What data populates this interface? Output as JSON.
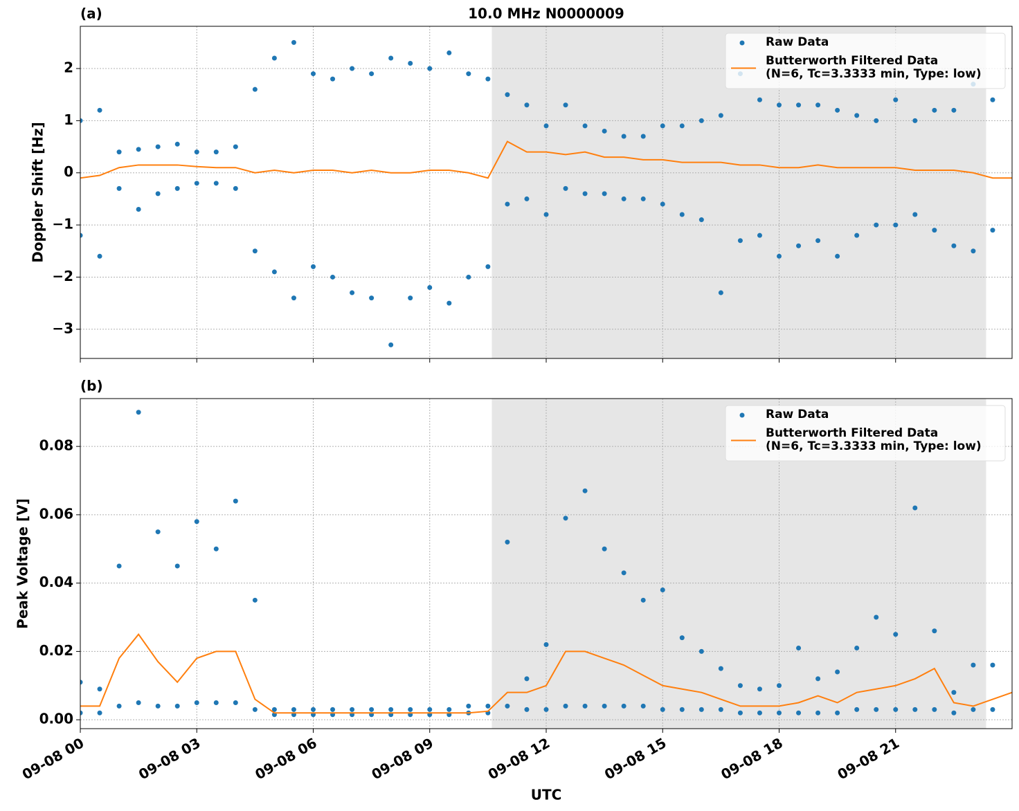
{
  "chart_data": [
    {
      "type": "line",
      "panel_label": "(a)",
      "title": "10.0 MHz N0000009",
      "ylabel": "Doppler Shift [Hz]",
      "xlim": [
        0,
        24
      ],
      "xticks": [
        0,
        3,
        6,
        9,
        12,
        15,
        18,
        21
      ],
      "ylim": [
        -3.56,
        2.81
      ],
      "yticks": [
        {
          "value": -3,
          "label": "−3"
        },
        {
          "value": -2,
          "label": "−2"
        },
        {
          "value": -1,
          "label": "−1"
        },
        0,
        1,
        2
      ],
      "grid": true,
      "legend": "upper right",
      "shaded_span": [
        10.6,
        23.33
      ],
      "shade_color": "#e6e6e6",
      "series": [
        {
          "name": "Raw Data",
          "style": "points",
          "color": "#1f77b4",
          "x": [
            0,
            0,
            0.5,
            0.5,
            1,
            1,
            1.5,
            1.5,
            2,
            2,
            2.5,
            2.5,
            3,
            3,
            3.5,
            3.5,
            4,
            4,
            4.5,
            4.5,
            5,
            5,
            5.5,
            5.5,
            6,
            6,
            6.5,
            6.5,
            7,
            7,
            7.5,
            7.5,
            8,
            8,
            8.5,
            8.5,
            9,
            9,
            9.5,
            9.5,
            10,
            10,
            10.5,
            10.5,
            11,
            11,
            11.5,
            11.5,
            12,
            12,
            12.5,
            12.5,
            13,
            13,
            13.5,
            13.5,
            14,
            14,
            14.5,
            14.5,
            15,
            15,
            15.5,
            15.5,
            16,
            16,
            16.5,
            16.5,
            17,
            17,
            17.5,
            17.5,
            18,
            18,
            18.5,
            18.5,
            19,
            19,
            19.5,
            19.5,
            20,
            20,
            20.5,
            20.5,
            21,
            21,
            21.5,
            21.5,
            22,
            22,
            22.5,
            22.5,
            23,
            23,
            23.5,
            23.5
          ],
          "values": [
            1.0,
            -1.2,
            1.2,
            -1.6,
            0.4,
            -0.3,
            0.45,
            -0.7,
            0.5,
            -0.4,
            0.55,
            -0.3,
            0.4,
            -0.2,
            0.4,
            -0.2,
            0.5,
            -0.3,
            1.6,
            -1.5,
            2.2,
            -1.9,
            2.5,
            -2.4,
            1.9,
            -1.8,
            1.8,
            -2.0,
            2.0,
            -2.3,
            1.9,
            -2.4,
            2.2,
            -3.3,
            2.1,
            -2.4,
            2.0,
            -2.2,
            2.3,
            -2.5,
            1.9,
            -2.0,
            1.8,
            -1.8,
            1.5,
            -0.6,
            1.3,
            -0.5,
            0.9,
            -0.8,
            1.3,
            -0.3,
            0.9,
            -0.4,
            0.8,
            -0.4,
            0.7,
            -0.5,
            0.7,
            -0.5,
            0.9,
            -0.6,
            0.9,
            -0.8,
            1.0,
            -0.9,
            1.1,
            -2.3,
            1.9,
            -1.3,
            1.4,
            -1.2,
            1.3,
            -1.6,
            1.3,
            -1.4,
            1.3,
            -1.3,
            1.2,
            -1.6,
            1.1,
            -1.2,
            1.0,
            -1.0,
            1.4,
            -1.0,
            1.0,
            -0.8,
            1.2,
            -1.1,
            1.2,
            -1.4,
            1.7,
            -1.5,
            1.4,
            -1.1
          ]
        },
        {
          "name": "Butterworth Filtered Data\n(N=6, Tc=3.3333 min, Type: low)",
          "style": "line",
          "color": "#ff7f0e",
          "x": [
            0,
            0.5,
            1,
            1.5,
            2,
            2.5,
            3,
            3.5,
            4,
            4.5,
            5,
            5.5,
            6,
            6.5,
            7,
            7.5,
            8,
            8.5,
            9,
            9.5,
            10,
            10.5,
            11,
            11.5,
            12,
            12.5,
            13,
            13.5,
            14,
            14.5,
            15,
            15.5,
            16,
            16.5,
            17,
            17.5,
            18,
            18.5,
            19,
            19.5,
            20,
            20.5,
            21,
            21.5,
            22,
            22.5,
            23,
            23.5,
            24
          ],
          "values": [
            -0.1,
            -0.05,
            0.1,
            0.15,
            0.15,
            0.15,
            0.12,
            0.1,
            0.1,
            0,
            0.05,
            0,
            0.05,
            0.05,
            0,
            0.05,
            0,
            0,
            0.05,
            0.05,
            0,
            -0.1,
            0.6,
            0.4,
            0.4,
            0.35,
            0.4,
            0.3,
            0.3,
            0.25,
            0.25,
            0.2,
            0.2,
            0.2,
            0.15,
            0.15,
            0.1,
            0.1,
            0.15,
            0.1,
            0.1,
            0.1,
            0.1,
            0.05,
            0.05,
            0.05,
            0,
            -0.1,
            -0.1
          ]
        }
      ]
    },
    {
      "type": "line",
      "panel_label": "(b)",
      "ylabel": "Peak Voltage [V]",
      "xlabel": "UTC",
      "xlim": [
        0,
        24
      ],
      "xticks": [
        {
          "value": 0,
          "label": "09-08 00"
        },
        {
          "value": 3,
          "label": "09-08 03"
        },
        {
          "value": 6,
          "label": "09-08 06"
        },
        {
          "value": 9,
          "label": "09-08 09"
        },
        {
          "value": 12,
          "label": "09-08 12"
        },
        {
          "value": 15,
          "label": "09-08 15"
        },
        {
          "value": 18,
          "label": "09-08 18"
        },
        {
          "value": 21,
          "label": "09-08 21"
        }
      ],
      "ylim": [
        -0.0026,
        0.094
      ],
      "yticks": [
        {
          "value": 0,
          "label": "0.00"
        },
        {
          "value": 0.02,
          "label": "0.02"
        },
        {
          "value": 0.04,
          "label": "0.04"
        },
        {
          "value": 0.06,
          "label": "0.06"
        },
        {
          "value": 0.08,
          "label": "0.08"
        }
      ],
      "grid": true,
      "legend": "upper right",
      "shaded_span": [
        10.6,
        23.33
      ],
      "shade_color": "#e6e6e6",
      "series": [
        {
          "name": "Raw Data",
          "style": "points",
          "color": "#1f77b4",
          "x": [
            0,
            0,
            0.5,
            0.5,
            1,
            1,
            1.5,
            1.5,
            2,
            2,
            2.5,
            2.5,
            3,
            3,
            3.5,
            3.5,
            4,
            4,
            4.5,
            4.5,
            5,
            5,
            5.5,
            5.5,
            6,
            6,
            6.5,
            6.5,
            7,
            7,
            7.5,
            7.5,
            8,
            8,
            8.5,
            8.5,
            9,
            9,
            9.5,
            9.5,
            10,
            10,
            10.5,
            10.5,
            11,
            11,
            11.5,
            11.5,
            12,
            12,
            12.5,
            12.5,
            13,
            13,
            13.5,
            13.5,
            14,
            14,
            14.5,
            14.5,
            15,
            15,
            15.5,
            15.5,
            16,
            16,
            16.5,
            16.5,
            17,
            17,
            17.5,
            17.5,
            18,
            18,
            18.5,
            18.5,
            19,
            19,
            19.5,
            19.5,
            20,
            20,
            20.5,
            20.5,
            21,
            21,
            21.5,
            21.5,
            22,
            22,
            22.5,
            22.5,
            23,
            23,
            23.5,
            23.5
          ],
          "values": [
            0.011,
            0.002,
            0.009,
            0.002,
            0.045,
            0.004,
            0.09,
            0.005,
            0.055,
            0.004,
            0.045,
            0.004,
            0.058,
            0.005,
            0.05,
            0.005,
            0.064,
            0.005,
            0.035,
            0.003,
            0.003,
            0.0015,
            0.003,
            0.0015,
            0.003,
            0.0015,
            0.003,
            0.0015,
            0.003,
            0.0015,
            0.003,
            0.0015,
            0.003,
            0.0015,
            0.003,
            0.0015,
            0.003,
            0.0015,
            0.003,
            0.0015,
            0.004,
            0.002,
            0.004,
            0.002,
            0.052,
            0.004,
            0.012,
            0.003,
            0.022,
            0.003,
            0.059,
            0.004,
            0.067,
            0.004,
            0.05,
            0.004,
            0.043,
            0.004,
            0.035,
            0.004,
            0.038,
            0.003,
            0.024,
            0.003,
            0.02,
            0.003,
            0.015,
            0.003,
            0.01,
            0.002,
            0.009,
            0.002,
            0.01,
            0.002,
            0.021,
            0.002,
            0.012,
            0.002,
            0.014,
            0.002,
            0.021,
            0.003,
            0.03,
            0.003,
            0.025,
            0.003,
            0.062,
            0.003,
            0.026,
            0.003,
            0.008,
            0.002,
            0.016,
            0.003,
            0.016,
            0.003
          ]
        },
        {
          "name": "Butterworth Filtered Data\n(N=6, Tc=3.3333 min, Type: low)",
          "style": "line",
          "color": "#ff7f0e",
          "x": [
            0,
            0.5,
            1,
            1.5,
            2,
            2.5,
            3,
            3.5,
            4,
            4.5,
            5,
            5.5,
            6,
            6.5,
            7,
            7.5,
            8,
            8.5,
            9,
            9.5,
            10,
            10.5,
            11,
            11.5,
            12,
            12.5,
            13,
            13.5,
            14,
            14.5,
            15,
            15.5,
            16,
            16.5,
            17,
            17.5,
            18,
            18.5,
            19,
            19.5,
            20,
            20.5,
            21,
            21.5,
            22,
            22.5,
            23,
            23.5,
            24
          ],
          "values": [
            0.004,
            0.004,
            0.018,
            0.025,
            0.017,
            0.011,
            0.018,
            0.02,
            0.02,
            0.006,
            0.002,
            0.002,
            0.002,
            0.002,
            0.002,
            0.002,
            0.002,
            0.002,
            0.002,
            0.002,
            0.002,
            0.0025,
            0.008,
            0.008,
            0.01,
            0.02,
            0.02,
            0.018,
            0.016,
            0.013,
            0.01,
            0.009,
            0.008,
            0.006,
            0.004,
            0.004,
            0.004,
            0.005,
            0.007,
            0.005,
            0.008,
            0.009,
            0.01,
            0.012,
            0.015,
            0.005,
            0.004,
            0.006,
            0.008
          ]
        }
      ]
    }
  ]
}
